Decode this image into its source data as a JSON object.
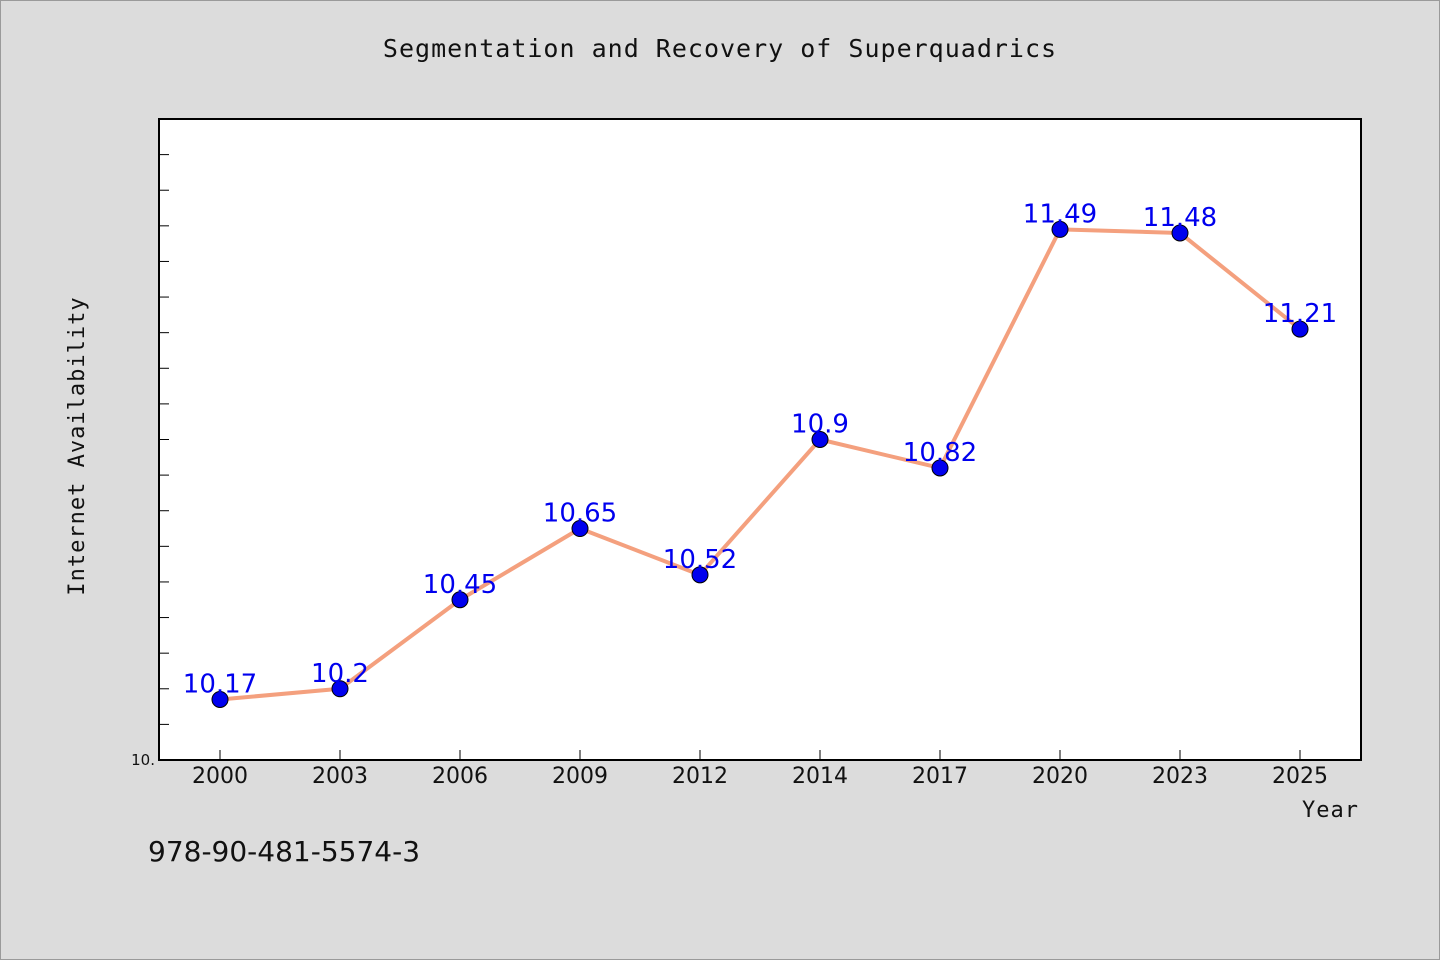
{
  "chart_data": {
    "type": "line",
    "title": "Segmentation and Recovery of Superquadrics",
    "xlabel": "Year",
    "ylabel": "Internet Availability",
    "categories": [
      "2000",
      "2003",
      "2006",
      "2009",
      "2012",
      "2014",
      "2017",
      "2020",
      "2023",
      "2025"
    ],
    "series": [
      {
        "values": [
          10.17,
          10.2,
          10.45,
          10.65,
          10.52,
          10.9,
          10.82,
          11.49,
          11.48,
          11.21
        ],
        "data_labels": [
          "10.17",
          "10.2",
          "10.45",
          "10.65",
          "10.52",
          "10.9",
          "10.82",
          "11.49",
          "11.48",
          "11.21"
        ]
      }
    ],
    "y_tick_labels": [
      "10."
    ],
    "ylim": [
      10.0,
      11.8
    ],
    "grid": false,
    "line_color": "#f4a07e",
    "marker_color": "#0000ee",
    "label_color": "#0000ee"
  },
  "footer": {
    "isbn": "978-90-481-5574-3"
  }
}
